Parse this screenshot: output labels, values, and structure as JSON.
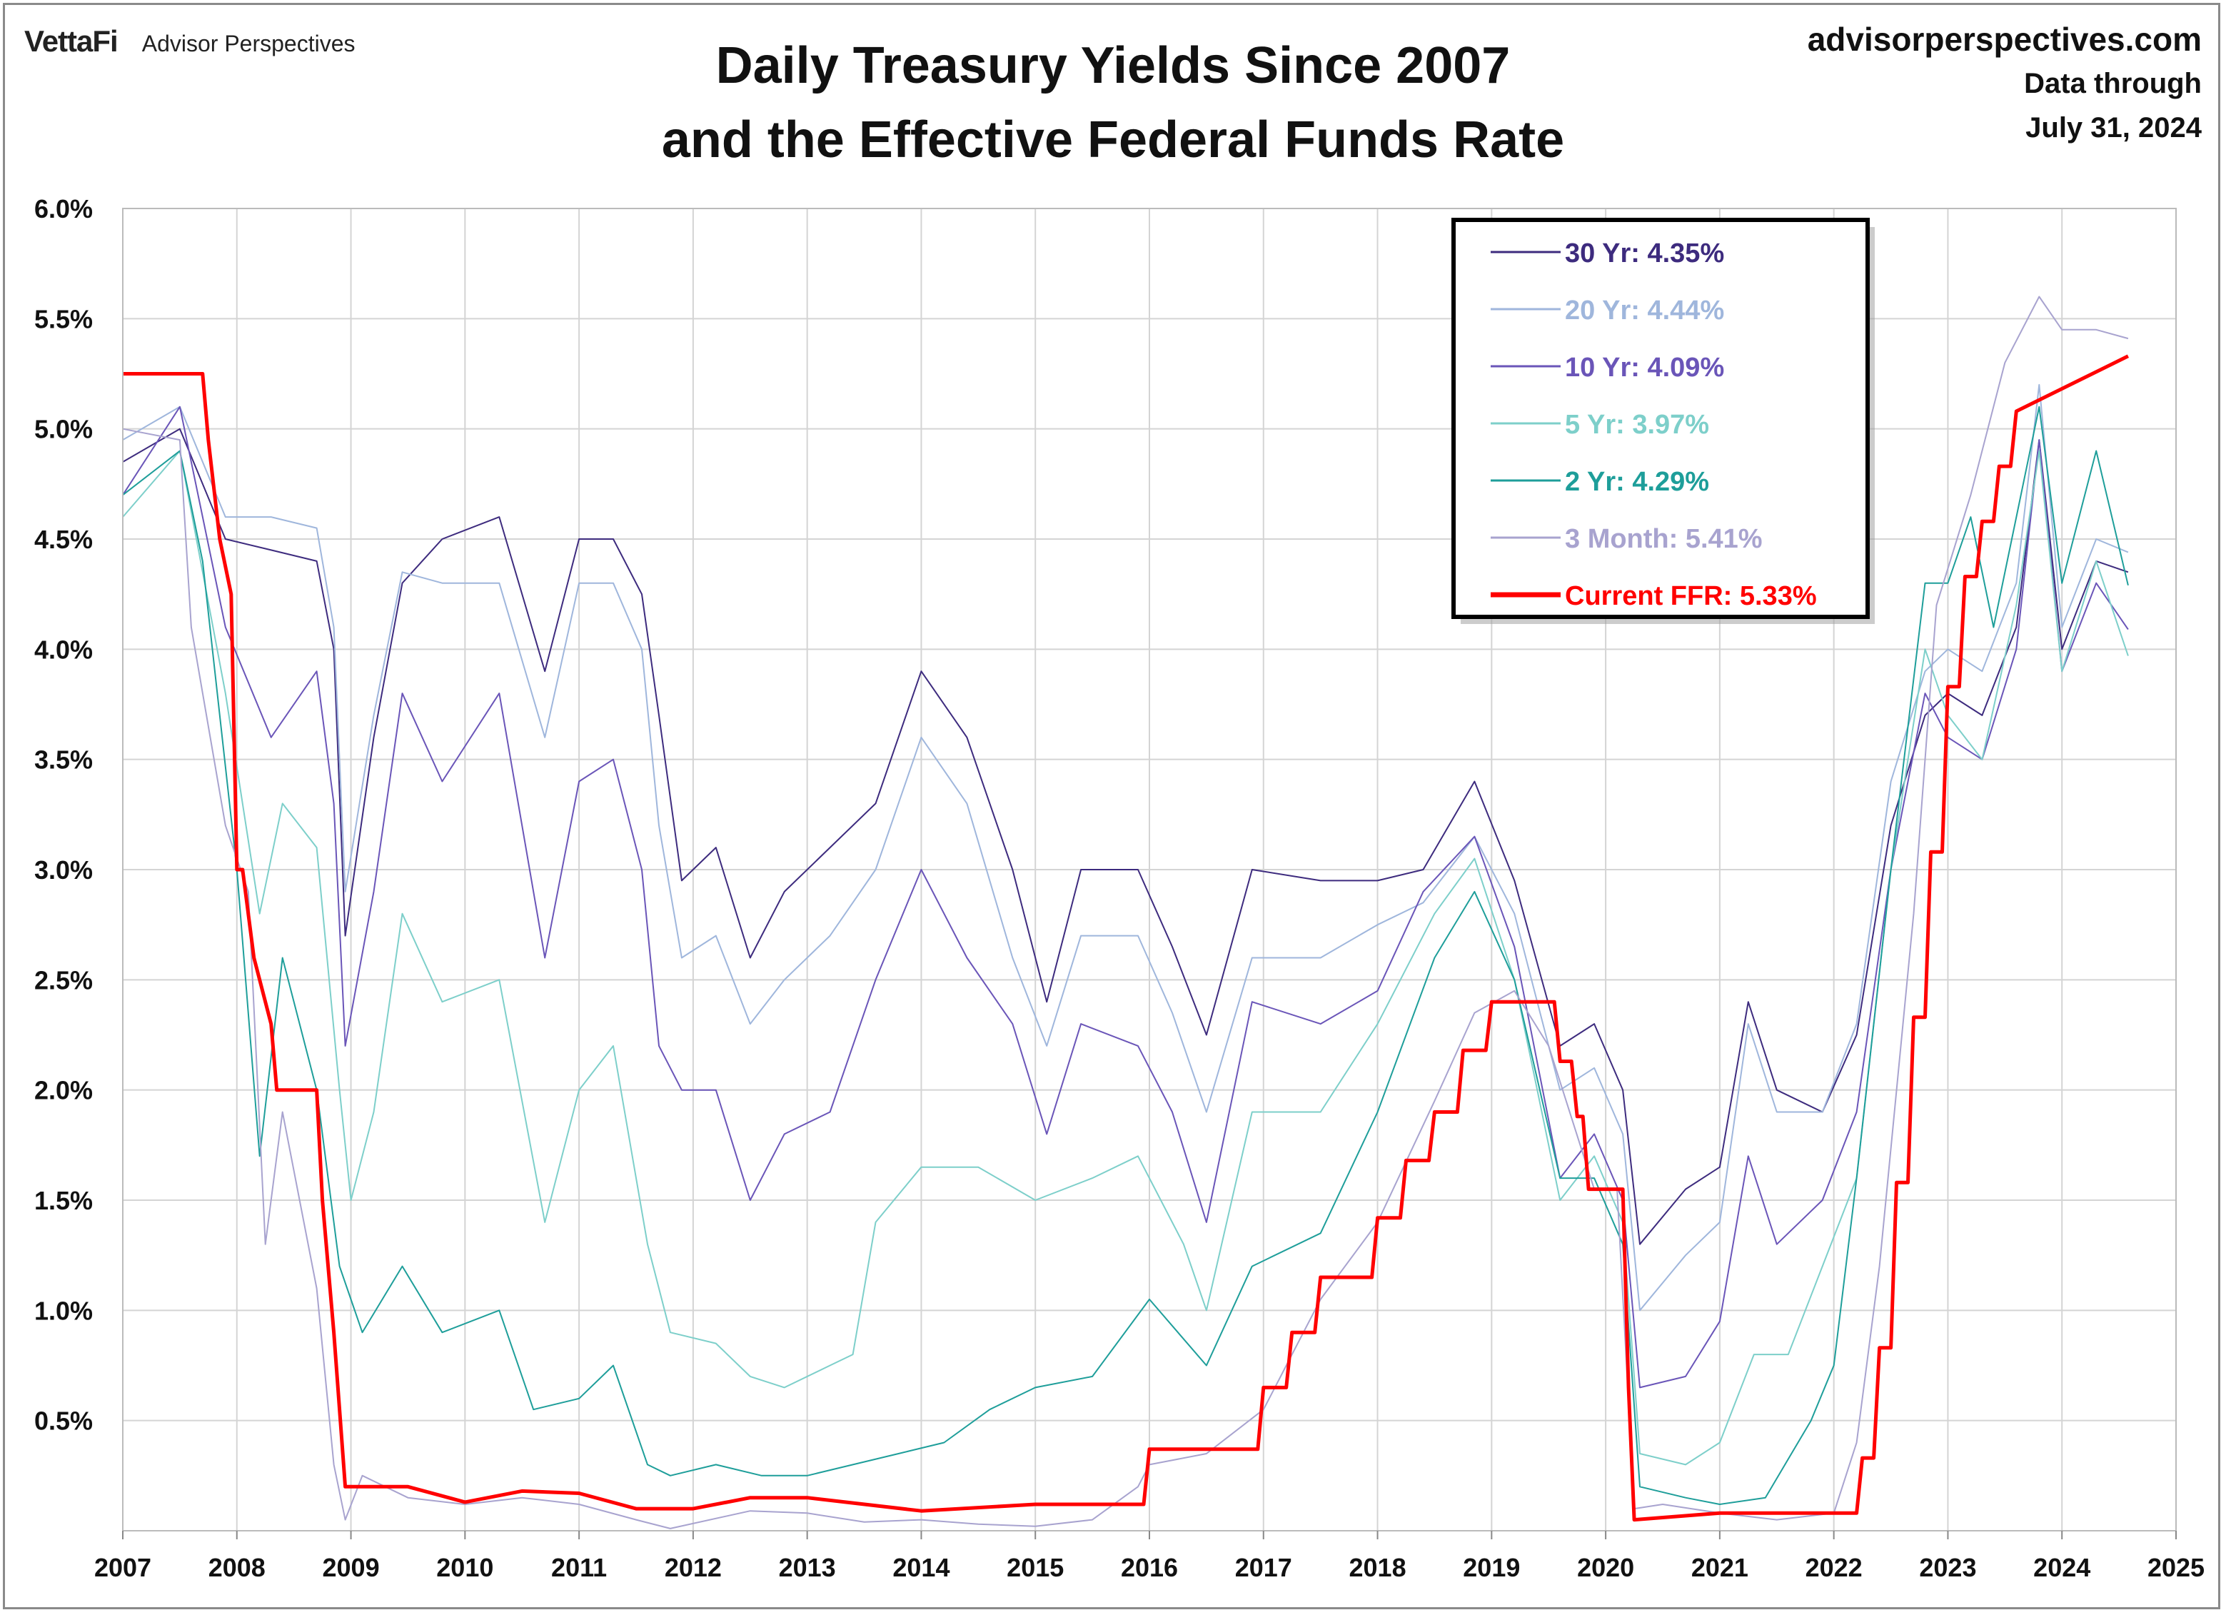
{
  "header": {
    "logo": "VettaFi",
    "brand": "Advisor Perspectives",
    "title_line1": "Daily Treasury Yields Since 2007",
    "title_line2": "and the Effective Federal Funds Rate",
    "site": "advisorperspectives.com",
    "data_through_label": "Data through",
    "data_through_date": "July 31, 2024"
  },
  "chart_data": {
    "type": "line",
    "title": "Daily Treasury Yields Since 2007 and the Effective Federal Funds Rate",
    "xlabel": "",
    "ylabel": "",
    "xlim": [
      2007,
      2025
    ],
    "ylim": [
      0,
      6
    ],
    "x_ticks": [
      "2007",
      "2008",
      "2009",
      "2010",
      "2011",
      "2012",
      "2013",
      "2014",
      "2015",
      "2016",
      "2017",
      "2018",
      "2019",
      "2020",
      "2021",
      "2022",
      "2023",
      "2024",
      "2025"
    ],
    "y_ticks": [
      "0.5%",
      "1.0%",
      "1.5%",
      "2.0%",
      "2.5%",
      "3.0%",
      "3.5%",
      "4.0%",
      "4.5%",
      "5.0%",
      "5.5%",
      "6.0%"
    ],
    "grid": true,
    "legend_position": "top-right",
    "recession_shading": [
      [
        2007.92,
        2009.5
      ],
      [
        2020.08,
        2020.33
      ]
    ],
    "series": [
      {
        "name": "30 Yr",
        "legend": "30 Yr: 4.35%",
        "color": "#3d2b7e",
        "width": 2,
        "x": [
          2007.0,
          2007.5,
          2007.9,
          2008.3,
          2008.7,
          2008.85,
          2008.95,
          2009.2,
          2009.45,
          2009.8,
          2010.3,
          2010.7,
          2011.0,
          2011.3,
          2011.55,
          2011.7,
          2011.9,
          2012.2,
          2012.5,
          2012.8,
          2013.2,
          2013.6,
          2014.0,
          2014.4,
          2014.8,
          2015.1,
          2015.4,
          2015.9,
          2016.2,
          2016.5,
          2016.9,
          2017.5,
          2018.0,
          2018.4,
          2018.85,
          2019.2,
          2019.6,
          2019.9,
          2020.15,
          2020.3,
          2020.7,
          2021.0,
          2021.25,
          2021.5,
          2021.9,
          2022.2,
          2022.5,
          2022.8,
          2023.0,
          2023.3,
          2023.6,
          2023.8,
          2024.0,
          2024.3,
          2024.58
        ],
        "y": [
          4.85,
          5.0,
          4.5,
          4.45,
          4.4,
          4.0,
          2.7,
          3.6,
          4.3,
          4.5,
          4.6,
          3.9,
          4.5,
          4.5,
          4.25,
          3.7,
          2.95,
          3.1,
          2.6,
          2.9,
          3.1,
          3.3,
          3.9,
          3.6,
          3.0,
          2.4,
          3.0,
          3.0,
          2.65,
          2.25,
          3.0,
          2.95,
          2.95,
          3.0,
          3.4,
          2.95,
          2.2,
          2.3,
          2.0,
          1.3,
          1.55,
          1.65,
          2.4,
          2.0,
          1.9,
          2.25,
          3.2,
          3.7,
          3.8,
          3.7,
          4.1,
          4.95,
          4.0,
          4.4,
          4.35
        ]
      },
      {
        "name": "20 Yr",
        "legend": "20 Yr: 4.44%",
        "color": "#9fb6dc",
        "width": 2,
        "x": [
          2007.0,
          2007.5,
          2007.9,
          2008.3,
          2008.7,
          2008.85,
          2008.95,
          2009.2,
          2009.45,
          2009.8,
          2010.3,
          2010.7,
          2011.0,
          2011.3,
          2011.55,
          2011.7,
          2011.9,
          2012.2,
          2012.5,
          2012.8,
          2013.2,
          2013.6,
          2014.0,
          2014.4,
          2014.8,
          2015.1,
          2015.4,
          2015.9,
          2016.2,
          2016.5,
          2016.9,
          2017.5,
          2018.0,
          2018.4,
          2018.85,
          2019.2,
          2019.6,
          2019.9,
          2020.15,
          2020.3,
          2020.7,
          2021.0,
          2021.25,
          2021.5,
          2021.9,
          2022.2,
          2022.5,
          2022.8,
          2023.0,
          2023.3,
          2023.6,
          2023.8,
          2024.0,
          2024.3,
          2024.58
        ],
        "y": [
          4.95,
          5.1,
          4.6,
          4.6,
          4.55,
          4.1,
          2.9,
          3.7,
          4.35,
          4.3,
          4.3,
          3.6,
          4.3,
          4.3,
          4.0,
          3.2,
          2.6,
          2.7,
          2.3,
          2.5,
          2.7,
          3.0,
          3.6,
          3.3,
          2.6,
          2.2,
          2.7,
          2.7,
          2.35,
          1.9,
          2.6,
          2.6,
          2.75,
          2.85,
          3.15,
          2.8,
          2.0,
          2.1,
          1.8,
          1.0,
          1.25,
          1.4,
          2.3,
          1.9,
          1.9,
          2.3,
          3.4,
          3.9,
          4.0,
          3.9,
          4.3,
          5.2,
          4.1,
          4.5,
          4.44
        ]
      },
      {
        "name": "10 Yr",
        "legend": "10 Yr: 4.09%",
        "color": "#6a55b8",
        "width": 2,
        "x": [
          2007.0,
          2007.5,
          2007.9,
          2008.3,
          2008.7,
          2008.85,
          2008.95,
          2009.2,
          2009.45,
          2009.8,
          2010.3,
          2010.7,
          2011.0,
          2011.3,
          2011.55,
          2011.7,
          2011.9,
          2012.2,
          2012.5,
          2012.8,
          2013.2,
          2013.6,
          2014.0,
          2014.4,
          2014.8,
          2015.1,
          2015.4,
          2015.9,
          2016.2,
          2016.5,
          2016.9,
          2017.5,
          2018.0,
          2018.4,
          2018.85,
          2019.2,
          2019.6,
          2019.9,
          2020.15,
          2020.3,
          2020.7,
          2021.0,
          2021.25,
          2021.5,
          2021.9,
          2022.2,
          2022.5,
          2022.8,
          2023.0,
          2023.3,
          2023.6,
          2023.8,
          2024.0,
          2024.3,
          2024.58
        ],
        "y": [
          4.7,
          5.1,
          4.1,
          3.6,
          3.9,
          3.3,
          2.2,
          2.9,
          3.8,
          3.4,
          3.8,
          2.6,
          3.4,
          3.5,
          3.0,
          2.2,
          2.0,
          2.0,
          1.5,
          1.8,
          1.9,
          2.5,
          3.0,
          2.6,
          2.3,
          1.8,
          2.3,
          2.2,
          1.9,
          1.4,
          2.4,
          2.3,
          2.45,
          2.9,
          3.15,
          2.65,
          1.6,
          1.8,
          1.5,
          0.65,
          0.7,
          0.95,
          1.7,
          1.3,
          1.5,
          1.9,
          3.0,
          3.8,
          3.6,
          3.5,
          4.0,
          4.95,
          3.9,
          4.3,
          4.09
        ]
      },
      {
        "name": "5 Yr",
        "legend": "5 Yr: 3.97%",
        "color": "#7dcfca",
        "width": 2,
        "x": [
          2007.0,
          2007.5,
          2007.9,
          2008.2,
          2008.4,
          2008.7,
          2008.9,
          2009.0,
          2009.2,
          2009.45,
          2009.8,
          2010.3,
          2010.7,
          2011.0,
          2011.3,
          2011.6,
          2011.8,
          2012.2,
          2012.5,
          2012.8,
          2013.2,
          2013.4,
          2013.6,
          2014.0,
          2014.5,
          2015.0,
          2015.5,
          2015.9,
          2016.3,
          2016.5,
          2016.9,
          2017.5,
          2018.0,
          2018.5,
          2018.85,
          2019.2,
          2019.6,
          2019.9,
          2020.15,
          2020.3,
          2020.7,
          2021.0,
          2021.3,
          2021.6,
          2021.9,
          2022.2,
          2022.5,
          2022.8,
          2023.0,
          2023.3,
          2023.6,
          2023.8,
          2024.0,
          2024.3,
          2024.58
        ],
        "y": [
          4.6,
          4.9,
          3.8,
          2.8,
          3.3,
          3.1,
          2.0,
          1.5,
          1.9,
          2.8,
          2.4,
          2.5,
          1.4,
          2.0,
          2.2,
          1.3,
          0.9,
          0.85,
          0.7,
          0.65,
          0.75,
          0.8,
          1.4,
          1.65,
          1.65,
          1.5,
          1.6,
          1.7,
          1.3,
          1.0,
          1.9,
          1.9,
          2.3,
          2.8,
          3.05,
          2.5,
          1.5,
          1.7,
          1.4,
          0.35,
          0.3,
          0.4,
          0.8,
          0.8,
          1.2,
          1.6,
          3.0,
          4.0,
          3.7,
          3.5,
          4.2,
          4.9,
          3.9,
          4.4,
          3.97
        ]
      },
      {
        "name": "2 Yr",
        "legend": "2 Yr: 4.29%",
        "color": "#1e9e9a",
        "width": 2,
        "x": [
          2007.0,
          2007.5,
          2007.7,
          2008.0,
          2008.2,
          2008.4,
          2008.7,
          2008.9,
          2009.1,
          2009.45,
          2009.8,
          2010.3,
          2010.6,
          2011.0,
          2011.3,
          2011.6,
          2011.8,
          2012.2,
          2012.6,
          2013.0,
          2013.4,
          2013.8,
          2014.2,
          2014.6,
          2015.0,
          2015.5,
          2016.0,
          2016.5,
          2016.9,
          2017.5,
          2018.0,
          2018.5,
          2018.85,
          2019.2,
          2019.6,
          2019.9,
          2020.15,
          2020.3,
          2020.7,
          2021.0,
          2021.4,
          2021.8,
          2022.0,
          2022.2,
          2022.5,
          2022.8,
          2023.0,
          2023.2,
          2023.4,
          2023.8,
          2024.0,
          2024.3,
          2024.58
        ],
        "y": [
          4.7,
          4.9,
          4.4,
          3.0,
          1.7,
          2.6,
          2.0,
          1.2,
          0.9,
          1.2,
          0.9,
          1.0,
          0.55,
          0.6,
          0.75,
          0.3,
          0.25,
          0.3,
          0.25,
          0.25,
          0.3,
          0.35,
          0.4,
          0.55,
          0.65,
          0.7,
          1.05,
          0.75,
          1.2,
          1.35,
          1.9,
          2.6,
          2.9,
          2.5,
          1.6,
          1.6,
          1.3,
          0.2,
          0.15,
          0.12,
          0.15,
          0.5,
          0.75,
          1.6,
          3.0,
          4.3,
          4.3,
          4.6,
          4.1,
          5.1,
          4.3,
          4.9,
          4.29
        ]
      },
      {
        "name": "3 Month",
        "legend": "3 Month: 5.41%",
        "color": "#a8a3cf",
        "width": 2,
        "x": [
          2007.0,
          2007.5,
          2007.6,
          2007.9,
          2008.1,
          2008.25,
          2008.4,
          2008.7,
          2008.85,
          2008.95,
          2009.1,
          2009.5,
          2010.0,
          2010.5,
          2011.0,
          2011.5,
          2011.8,
          2012.5,
          2013.0,
          2013.5,
          2014.0,
          2014.5,
          2015.0,
          2015.5,
          2015.9,
          2016.0,
          2016.5,
          2017.0,
          2017.5,
          2018.0,
          2018.5,
          2018.85,
          2019.2,
          2019.5,
          2019.9,
          2020.1,
          2020.25,
          2020.5,
          2021.0,
          2021.5,
          2022.0,
          2022.2,
          2022.4,
          2022.7,
          2022.9,
          2023.2,
          2023.5,
          2023.8,
          2024.0,
          2024.3,
          2024.58
        ],
        "y": [
          5.0,
          4.95,
          4.1,
          3.2,
          2.9,
          1.3,
          1.9,
          1.1,
          0.3,
          0.05,
          0.25,
          0.15,
          0.12,
          0.15,
          0.12,
          0.05,
          0.01,
          0.09,
          0.08,
          0.04,
          0.05,
          0.03,
          0.02,
          0.05,
          0.2,
          0.3,
          0.35,
          0.55,
          1.05,
          1.4,
          1.95,
          2.35,
          2.45,
          2.2,
          1.55,
          1.55,
          0.1,
          0.12,
          0.08,
          0.05,
          0.08,
          0.4,
          1.2,
          2.8,
          4.2,
          4.7,
          5.3,
          5.6,
          5.45,
          5.45,
          5.41
        ]
      },
      {
        "name": "Current FFR",
        "legend": "Current FFR: 5.33%",
        "color": "#ff0000",
        "width": 5,
        "x": [
          2007.0,
          2007.7,
          2007.75,
          2007.85,
          2007.95,
          2008.0,
          2008.05,
          2008.15,
          2008.3,
          2008.35,
          2008.5,
          2008.7,
          2008.75,
          2008.85,
          2008.95,
          2009.5,
          2010.0,
          2010.5,
          2011.0,
          2011.5,
          2012.0,
          2012.5,
          2013.0,
          2014.0,
          2015.0,
          2015.95,
          2016.0,
          2016.95,
          2017.0,
          2017.2,
          2017.25,
          2017.45,
          2017.5,
          2017.95,
          2018.0,
          2018.2,
          2018.25,
          2018.45,
          2018.5,
          2018.7,
          2018.75,
          2018.95,
          2019.0,
          2019.55,
          2019.6,
          2019.7,
          2019.75,
          2019.8,
          2019.85,
          2020.15,
          2020.2,
          2020.25,
          2021.0,
          2022.0,
          2022.2,
          2022.25,
          2022.35,
          2022.4,
          2022.5,
          2022.55,
          2022.65,
          2022.7,
          2022.8,
          2022.85,
          2022.95,
          2023.0,
          2023.1,
          2023.15,
          2023.25,
          2023.3,
          2023.4,
          2023.45,
          2023.55,
          2023.6,
          2024.58
        ],
        "y": [
          5.25,
          5.25,
          4.95,
          4.5,
          4.25,
          3.0,
          3.0,
          2.6,
          2.3,
          2.0,
          2.0,
          2.0,
          1.5,
          0.9,
          0.2,
          0.2,
          0.13,
          0.18,
          0.17,
          0.1,
          0.1,
          0.15,
          0.15,
          0.09,
          0.12,
          0.12,
          0.37,
          0.37,
          0.65,
          0.65,
          0.9,
          0.9,
          1.15,
          1.15,
          1.42,
          1.42,
          1.68,
          1.68,
          1.9,
          1.9,
          2.18,
          2.18,
          2.4,
          2.4,
          2.13,
          2.13,
          1.88,
          1.88,
          1.55,
          1.55,
          0.65,
          0.05,
          0.08,
          0.08,
          0.08,
          0.33,
          0.33,
          0.83,
          0.83,
          1.58,
          1.58,
          2.33,
          2.33,
          3.08,
          3.08,
          3.83,
          3.83,
          4.33,
          4.33,
          4.58,
          4.58,
          4.83,
          4.83,
          5.08,
          5.33
        ]
      }
    ]
  }
}
